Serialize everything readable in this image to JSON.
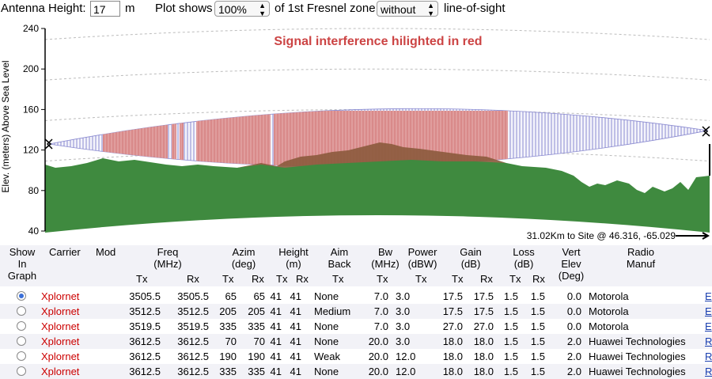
{
  "controls": {
    "antenna_height_label": "Antenna Height:",
    "antenna_height_value": "17",
    "antenna_height_unit": "m",
    "plot_shows_label": "Plot shows",
    "plot_percent": "100%",
    "fresnel_label": "of 1st Fresnel zone",
    "los_mode": "without",
    "los_label": "line-of-sight"
  },
  "chart_data": {
    "type": "area",
    "title": "Signal interference hilighted in red",
    "ylabel": "Elev. (meters) Above Sea Level",
    "ylim": [
      40,
      240
    ],
    "y_ticks": [
      "240",
      "200",
      "160",
      "120",
      "80",
      "40"
    ],
    "distance_note": "31.02Km to Site @ 46.316, -65.029",
    "colors": {
      "terrain": "#3f8a3f",
      "interference": "#d98080",
      "fresnel": "#8080c8",
      "title": "#cc4444"
    }
  },
  "table": {
    "headers": [
      "Show In Graph",
      "Carrier",
      "Mod",
      "Freq (MHz)",
      "Azim (deg)",
      "Height (m)",
      "Aim Back",
      "Bw (MHz)",
      "Power (dBW)",
      "Gain (dB)",
      "Loss (dB)",
      "Vert Elev (Deg)",
      "Radio Manuf"
    ],
    "subheaders": [
      "Tx",
      "Rx",
      "Tx",
      "Rx",
      "Tx",
      "Rx",
      "Tx",
      "Tx",
      "Tx",
      "Tx",
      "Rx",
      "Tx",
      "Rx"
    ],
    "rows": [
      {
        "selected": true,
        "carrier": "Xplornet",
        "freq_tx": "3505.5",
        "freq_rx": "3505.5",
        "azim_tx": "65",
        "azim_rx": "65",
        "h_tx": "41",
        "h_rx": "41",
        "aim": "None",
        "bw": "7.0",
        "power": "3.0",
        "gain_tx": "17.5",
        "gain_rx": "17.5",
        "loss_tx": "1.5",
        "loss_rx": "1.5",
        "elev": "0.0",
        "manuf": "Motorola",
        "link": "E"
      },
      {
        "selected": false,
        "carrier": "Xplornet",
        "freq_tx": "3512.5",
        "freq_rx": "3512.5",
        "azim_tx": "205",
        "azim_rx": "205",
        "h_tx": "41",
        "h_rx": "41",
        "aim": "Medium",
        "bw": "7.0",
        "power": "3.0",
        "gain_tx": "17.5",
        "gain_rx": "17.5",
        "loss_tx": "1.5",
        "loss_rx": "1.5",
        "elev": "0.0",
        "manuf": "Motorola",
        "link": "E"
      },
      {
        "selected": false,
        "carrier": "Xplornet",
        "freq_tx": "3519.5",
        "freq_rx": "3519.5",
        "azim_tx": "335",
        "azim_rx": "335",
        "h_tx": "41",
        "h_rx": "41",
        "aim": "None",
        "bw": "7.0",
        "power": "3.0",
        "gain_tx": "27.0",
        "gain_rx": "27.0",
        "loss_tx": "1.5",
        "loss_rx": "1.5",
        "elev": "0.0",
        "manuf": "Motorola",
        "link": "E"
      },
      {
        "selected": false,
        "carrier": "Xplornet",
        "freq_tx": "3612.5",
        "freq_rx": "3612.5",
        "azim_tx": "70",
        "azim_rx": "70",
        "h_tx": "41",
        "h_rx": "41",
        "aim": "None",
        "bw": "20.0",
        "power": "3.0",
        "gain_tx": "18.0",
        "gain_rx": "18.0",
        "loss_tx": "1.5",
        "loss_rx": "1.5",
        "elev": "2.0",
        "manuf": "Huawei Technologies",
        "link": "R"
      },
      {
        "selected": false,
        "carrier": "Xplornet",
        "freq_tx": "3612.5",
        "freq_rx": "3612.5",
        "azim_tx": "190",
        "azim_rx": "190",
        "h_tx": "41",
        "h_rx": "41",
        "aim": "Weak",
        "bw": "20.0",
        "power": "12.0",
        "gain_tx": "18.0",
        "gain_rx": "18.0",
        "loss_tx": "1.5",
        "loss_rx": "1.5",
        "elev": "2.0",
        "manuf": "Huawei Technologies",
        "link": "R"
      },
      {
        "selected": false,
        "carrier": "Xplornet",
        "freq_tx": "3612.5",
        "freq_rx": "3612.5",
        "azim_tx": "335",
        "azim_rx": "335",
        "h_tx": "41",
        "h_rx": "41",
        "aim": "None",
        "bw": "20.0",
        "power": "12.0",
        "gain_tx": "18.0",
        "gain_rx": "18.0",
        "loss_tx": "1.5",
        "loss_rx": "1.5",
        "elev": "2.0",
        "manuf": "Huawei Technologies",
        "link": "R"
      }
    ]
  }
}
